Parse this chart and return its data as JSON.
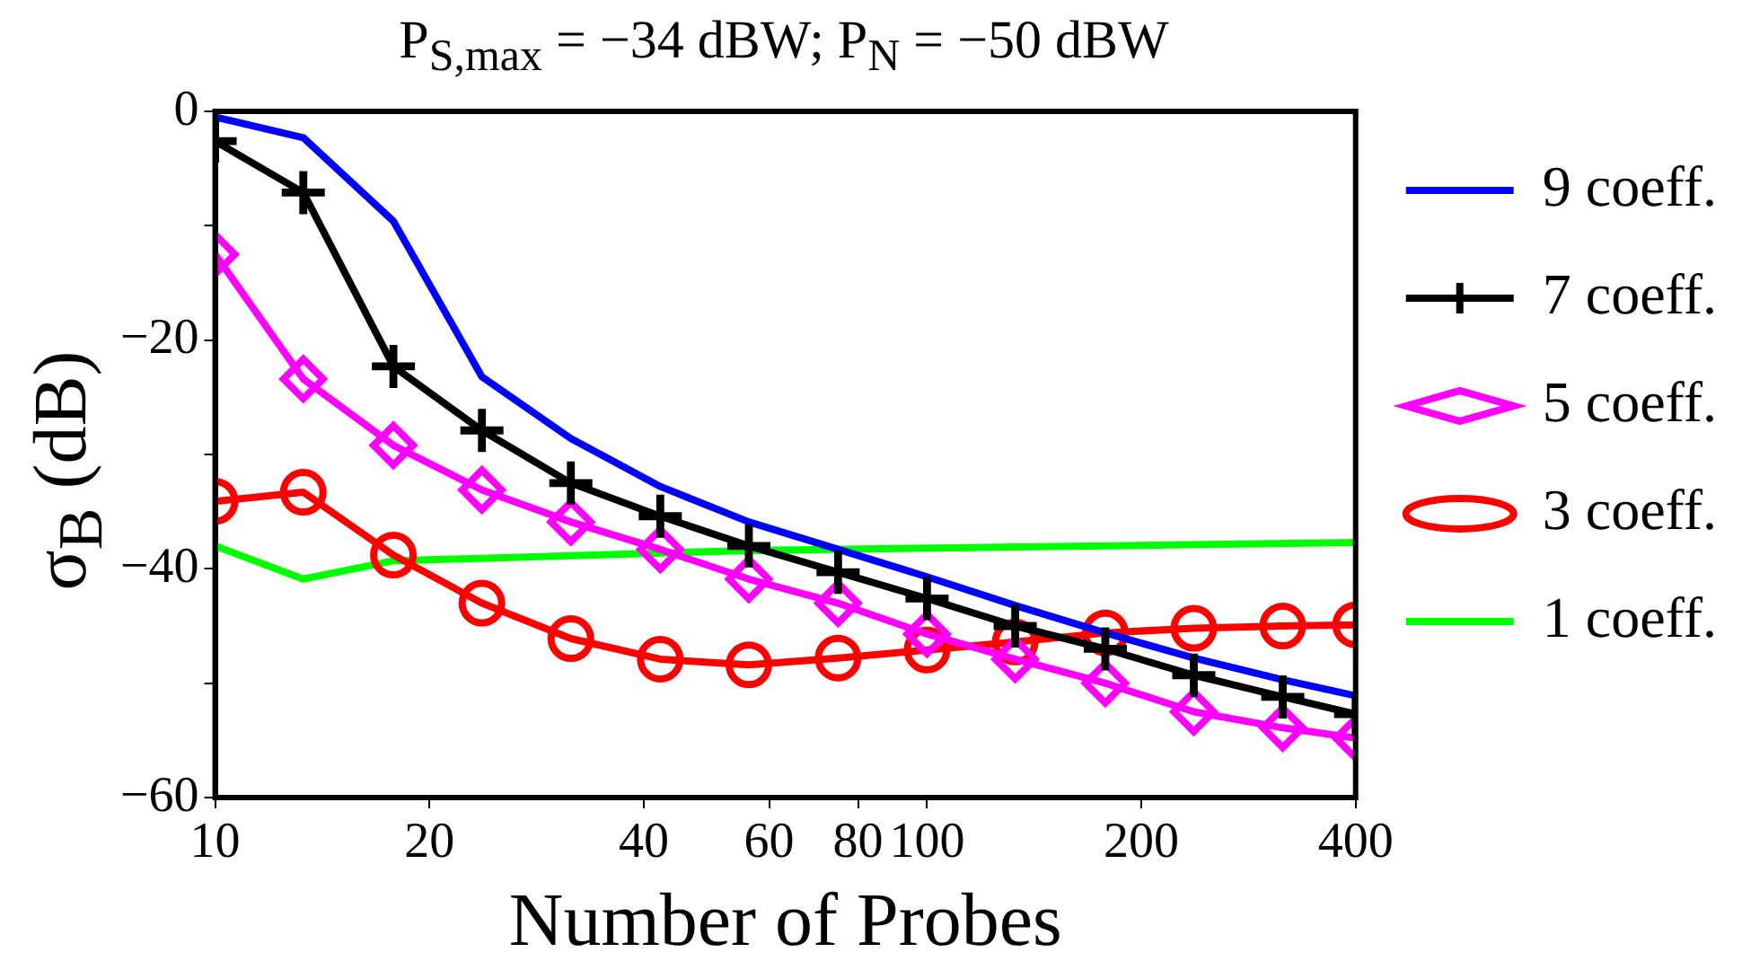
{
  "chart_data": {
    "type": "line",
    "title": "P$_{S,max}$ = −34 dBW; P$_{N}$ = −50 dBW",
    "xlabel": "Number of Probes",
    "ylabel": "σ$_{B}$ (dB)",
    "log": "x",
    "xlim": [
      10,
      400
    ],
    "xticks": [
      10,
      20,
      40,
      60,
      80,
      100,
      200,
      400
    ],
    "ylim": [
      -60,
      0
    ],
    "yticks": [
      -60,
      {
        "value": -50,
        "label": null
      },
      -40,
      {
        "value": -30,
        "label": null
      },
      -20,
      {
        "value": -10,
        "label": null
      },
      0
    ],
    "grid": false,
    "legend": "right",
    "line_style": "solid",
    "series": [
      {
        "name": "9 coeff.",
        "color": "#0000ff",
        "marker": "none",
        "x": [
          10,
          13.3,
          17.8,
          23.7,
          31.6,
          42.2,
          56.2,
          75,
          100,
          133,
          178,
          237,
          316,
          400
        ],
        "values": [
          -0.5,
          -2.3,
          -9.6,
          -23.2,
          -28.6,
          -32.8,
          -35.9,
          -38.3,
          -40.7,
          -43.2,
          -45.6,
          -47.8,
          -49.7,
          -51.1
        ]
      },
      {
        "name": "7 coeff.",
        "color": "#000000",
        "marker": "cross",
        "x": [
          10,
          13.3,
          17.8,
          23.7,
          31.6,
          42.2,
          56.2,
          75,
          100,
          133,
          178,
          237,
          316,
          400
        ],
        "values": [
          -2.6,
          -7.1,
          -22.3,
          -27.9,
          -32.5,
          -35.4,
          -38.0,
          -40.3,
          -42.6,
          -45.0,
          -47.0,
          -49.3,
          -51.2,
          -52.7
        ]
      },
      {
        "name": "5 coeff.",
        "color": "#ff00ff",
        "marker": "diamond",
        "x": [
          10,
          13.3,
          17.8,
          23.7,
          31.6,
          42.2,
          56.2,
          75,
          100,
          133,
          178,
          237,
          316,
          400
        ],
        "values": [
          -12.5,
          -23.4,
          -29.2,
          -33.1,
          -35.9,
          -38.3,
          -40.9,
          -43.0,
          -45.7,
          -47.9,
          -50.0,
          -52.5,
          -53.9,
          -54.8
        ]
      },
      {
        "name": "3 coeff.",
        "color": "#ff0000",
        "marker": "circle",
        "x": [
          10,
          13.3,
          17.8,
          23.7,
          31.6,
          42.2,
          56.2,
          75,
          100,
          133,
          178,
          237,
          316,
          400
        ],
        "values": [
          -34.1,
          -33.3,
          -38.8,
          -43.0,
          -46.1,
          -47.9,
          -48.4,
          -47.8,
          -47.1,
          -46.4,
          -45.6,
          -45.2,
          -45.0,
          -44.9
        ]
      },
      {
        "name": "1 coeff.",
        "color": "#00ff00",
        "marker": "none",
        "x": [
          10,
          13.3,
          17.8,
          56.2,
          400
        ],
        "values": [
          -38.0,
          -40.9,
          -39.3,
          -38.4,
          -37.7
        ]
      }
    ]
  }
}
